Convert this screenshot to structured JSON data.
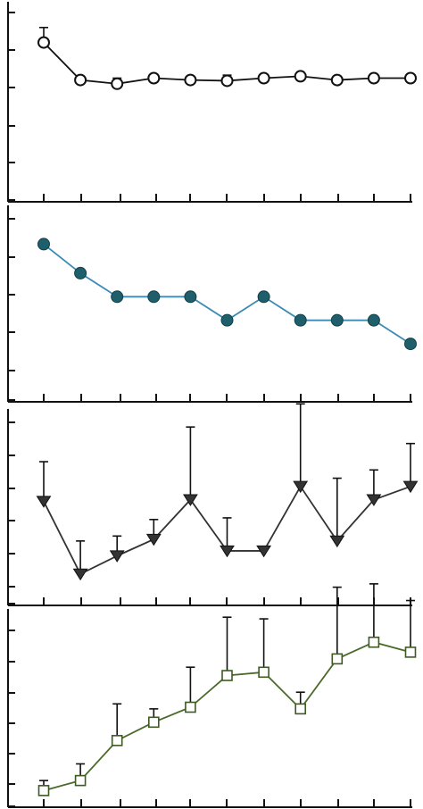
{
  "chart_data": [
    {
      "type": "line",
      "marker": "open-circle",
      "color": "#111111",
      "x": [
        1,
        2,
        3,
        4,
        5,
        6,
        7,
        8,
        9,
        10,
        11
      ],
      "ylim": [
        0,
        5
      ],
      "values": [
        4.2,
        3.2,
        3.1,
        3.25,
        3.2,
        3.18,
        3.25,
        3.3,
        3.2,
        3.25,
        3.25
      ],
      "error_upper": [
        0.4,
        0,
        0.15,
        0,
        0,
        0.15,
        0.1,
        0,
        0,
        0,
        0
      ]
    },
    {
      "type": "line",
      "marker": "filled-circle",
      "color": "#1e5f6b",
      "line_color": "#3a8bb5",
      "x": [
        1,
        2,
        3,
        4,
        5,
        6,
        7,
        8,
        9,
        10,
        11
      ],
      "ylim": [
        0,
        5
      ],
      "values": [
        4.3,
        3.5,
        2.85,
        2.85,
        2.85,
        2.2,
        2.85,
        2.2,
        2.2,
        2.2,
        1.55
      ],
      "error_upper": [
        0,
        0,
        0,
        0,
        0,
        0,
        0,
        0,
        0,
        0,
        0
      ]
    },
    {
      "type": "line",
      "marker": "filled-triangle-down",
      "color": "#333333",
      "x": [
        1,
        2,
        3,
        4,
        5,
        6,
        7,
        8,
        9,
        10,
        11
      ],
      "ylim": [
        0,
        6
      ],
      "values": [
        3.15,
        0.95,
        1.5,
        2.0,
        3.2,
        1.65,
        1.65,
        3.6,
        1.95,
        3.2,
        3.6
      ],
      "error_upper": [
        1.2,
        1.0,
        0.6,
        0.6,
        2.2,
        1.0,
        0,
        2.5,
        1.9,
        0.9,
        1.3
      ]
    },
    {
      "type": "line",
      "marker": "open-square",
      "color": "#4a6a2a",
      "x": [
        1,
        2,
        3,
        4,
        5,
        6,
        7,
        8,
        9,
        10,
        11
      ],
      "ylim": [
        0,
        6
      ],
      "values": [
        0.5,
        0.8,
        2.0,
        2.55,
        3.0,
        3.95,
        4.05,
        2.95,
        4.45,
        4.95,
        4.65
      ],
      "error_upper": [
        0.3,
        0.5,
        1.1,
        0.4,
        1.2,
        1.75,
        1.6,
        0.5,
        2.15,
        1.75,
        1.55
      ]
    }
  ]
}
